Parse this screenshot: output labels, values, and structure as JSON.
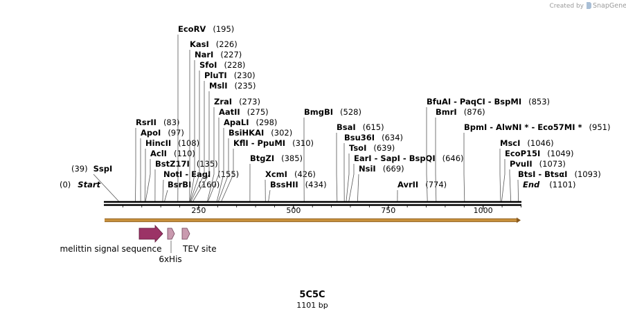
{
  "credit": {
    "prefix": "Created by",
    "brand": "SnapGene",
    "icon": "snapgene-logo-icon"
  },
  "map": {
    "name": "5C5C",
    "length_label": "1101 bp",
    "length": 1101,
    "start_label": "Start",
    "start_pos": "(0)",
    "end_label": "End",
    "end_pos": "(1101)",
    "ticks": [
      {
        "value": 250,
        "label": "250"
      },
      {
        "value": 500,
        "label": "500"
      },
      {
        "value": 750,
        "label": "750"
      },
      {
        "value": 1000,
        "label": "1000"
      }
    ],
    "features": [
      {
        "name": "melittin signal sequence",
        "start": 93,
        "end": 155,
        "color": "#9b3366",
        "kind": "arrow"
      },
      {
        "name": "6xHis",
        "start": 169,
        "end": 187,
        "color": "#c99aaf",
        "kind": "small"
      },
      {
        "name": "TEV site",
        "start": 208,
        "end": 229,
        "color": "#c99aaf",
        "kind": "small"
      }
    ]
  },
  "sites": [
    {
      "label": [
        [
          "SspI",
          "(39)"
        ]
      ],
      "cut": 39,
      "italic": false
    },
    {
      "label": [
        [
          "RsrII",
          "(83)"
        ]
      ],
      "cut": 83
    },
    {
      "label": [
        [
          "ApoI",
          "(97)"
        ]
      ],
      "cut": 97
    },
    {
      "label": [
        [
          "HincII",
          "(108)"
        ]
      ],
      "cut": 108
    },
    {
      "label": [
        [
          "AclI",
          "(110)"
        ]
      ],
      "cut": 110
    },
    {
      "label": [
        [
          "BstZ17I",
          "(135)"
        ]
      ],
      "cut": 135
    },
    {
      "label": [
        [
          "NotI",
          ""
        ],
        [
          "EagI",
          "(155)"
        ]
      ],
      "cut": 155
    },
    {
      "label": [
        [
          "BsrBI",
          "(160)"
        ]
      ],
      "cut": 160
    },
    {
      "label": [
        [
          "EcoRV",
          "(195)"
        ]
      ],
      "cut": 195
    },
    {
      "label": [
        [
          "KasI",
          "(226)"
        ]
      ],
      "cut": 226
    },
    {
      "label": [
        [
          "NarI",
          "(227)"
        ]
      ],
      "cut": 227
    },
    {
      "label": [
        [
          "SfoI",
          "(228)"
        ]
      ],
      "cut": 228
    },
    {
      "label": [
        [
          "PluTI",
          "(230)"
        ]
      ],
      "cut": 230
    },
    {
      "label": [
        [
          "MslI",
          "(235)"
        ]
      ],
      "cut": 235
    },
    {
      "label": [
        [
          "ZraI",
          "(273)"
        ]
      ],
      "cut": 273
    },
    {
      "label": [
        [
          "AatII",
          "(275)"
        ]
      ],
      "cut": 275
    },
    {
      "label": [
        [
          "ApaLI",
          "(298)"
        ]
      ],
      "cut": 298
    },
    {
      "label": [
        [
          "BsiHKAI",
          "(302)"
        ]
      ],
      "cut": 302
    },
    {
      "label": [
        [
          "KflI",
          ""
        ],
        [
          "PpuMI",
          "(310)"
        ]
      ],
      "cut": 310
    },
    {
      "label": [
        [
          "BtgZI",
          "(385)"
        ]
      ],
      "cut": 385
    },
    {
      "label": [
        [
          "XcmI",
          "(426)"
        ]
      ],
      "cut": 426
    },
    {
      "label": [
        [
          "BssHII",
          "(434)"
        ]
      ],
      "cut": 434
    },
    {
      "label": [
        [
          "BmgBI",
          "(528)"
        ]
      ],
      "cut": 528
    },
    {
      "label": [
        [
          "BsaI",
          "(615)"
        ]
      ],
      "cut": 615
    },
    {
      "label": [
        [
          "Bsu36I",
          "(634)"
        ]
      ],
      "cut": 634
    },
    {
      "label": [
        [
          "TsoI",
          "(639)"
        ]
      ],
      "cut": 639
    },
    {
      "label": [
        [
          "EarI",
          ""
        ],
        [
          "SapI",
          ""
        ],
        [
          "BspQI",
          "(646)"
        ]
      ],
      "cut": 646
    },
    {
      "label": [
        [
          "NsiI",
          "(669)"
        ]
      ],
      "cut": 669
    },
    {
      "label": [
        [
          "AvrII",
          "(774)"
        ]
      ],
      "cut": 774
    },
    {
      "label": [
        [
          "BfuAI",
          ""
        ],
        [
          "PaqCI",
          ""
        ],
        [
          "BspMI",
          "(853)"
        ]
      ],
      "cut": 853
    },
    {
      "label": [
        [
          "BmrI",
          "(876)"
        ]
      ],
      "cut": 876
    },
    {
      "label": [
        [
          "BpmI",
          ""
        ],
        [
          "AlwNI *",
          ""
        ],
        [
          "Eco57MI *",
          "(951)"
        ]
      ],
      "cut": 951
    },
    {
      "label": [
        [
          "MscI",
          "(1046)"
        ]
      ],
      "cut": 1046
    },
    {
      "label": [
        [
          "EcoP15I",
          "(1049)"
        ]
      ],
      "cut": 1049
    },
    {
      "label": [
        [
          "PvuII",
          "(1073)"
        ]
      ],
      "cut": 1073
    },
    {
      "label": [
        [
          "BtsI",
          ""
        ],
        [
          "BtsαI",
          "(1093)"
        ]
      ],
      "cut": 1093
    }
  ]
}
